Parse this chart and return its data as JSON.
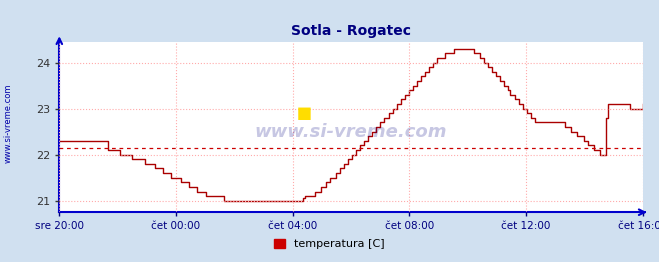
{
  "title": "Sotla - Rogatec",
  "title_color": "#000080",
  "background_color": "#d0e0f0",
  "plot_bg_color": "#ffffff",
  "line_color": "#aa0000",
  "dashed_line_value": 22.15,
  "dashed_line_color": "#cc0000",
  "axis_color": "#0000cc",
  "grid_color": "#ffaaaa",
  "yticks": [
    21,
    22,
    23,
    24
  ],
  "ylim": [
    20.75,
    24.45
  ],
  "xtick_labels": [
    "sre 20:00",
    "čet 00:00",
    "čet 04:00",
    "čet 08:00",
    "čet 12:00",
    "čet 16:00"
  ],
  "xlabel_color": "#000080",
  "ylabel_text": "www.si-vreme.com",
  "ylabel_color": "#0000aa",
  "legend_label": "temperatura [C]",
  "legend_color": "#cc0000",
  "watermark_text": "www.si-vreme.com",
  "watermark_color": "#000080",
  "temperature_data": [
    22.3,
    22.3,
    22.3,
    22.3,
    22.3,
    22.3,
    22.3,
    22.3,
    22.3,
    22.3,
    22.3,
    22.3,
    22.3,
    22.3,
    22.3,
    22.3,
    22.3,
    22.3,
    22.3,
    22.3,
    22.3,
    22.3,
    22.3,
    22.3,
    22.1,
    22.1,
    22.1,
    22.1,
    22.1,
    22.1,
    22.0,
    22.0,
    22.0,
    22.0,
    22.0,
    22.0,
    21.9,
    21.9,
    21.9,
    21.9,
    21.9,
    21.9,
    21.8,
    21.8,
    21.8,
    21.8,
    21.8,
    21.7,
    21.7,
    21.7,
    21.7,
    21.6,
    21.6,
    21.6,
    21.6,
    21.5,
    21.5,
    21.5,
    21.5,
    21.5,
    21.4,
    21.4,
    21.4,
    21.4,
    21.3,
    21.3,
    21.3,
    21.3,
    21.2,
    21.2,
    21.2,
    21.2,
    21.1,
    21.1,
    21.1,
    21.1,
    21.1,
    21.1,
    21.1,
    21.1,
    21.1,
    21.0,
    21.0,
    21.0,
    21.0,
    21.0,
    21.0,
    21.0,
    21.0,
    21.0,
    21.0,
    21.0,
    21.0,
    21.0,
    21.0,
    21.0,
    21.0,
    21.0,
    21.0,
    21.0,
    21.0,
    21.0,
    21.0,
    21.0,
    21.0,
    21.0,
    21.0,
    21.0,
    21.0,
    21.0,
    21.0,
    21.0,
    21.0,
    21.0,
    21.0,
    21.0,
    21.0,
    21.0,
    21.0,
    21.0,
    21.05,
    21.1,
    21.1,
    21.1,
    21.1,
    21.1,
    21.2,
    21.2,
    21.2,
    21.3,
    21.3,
    21.4,
    21.4,
    21.5,
    21.5,
    21.5,
    21.6,
    21.6,
    21.7,
    21.7,
    21.8,
    21.8,
    21.9,
    21.9,
    22.0,
    22.0,
    22.1,
    22.1,
    22.2,
    22.2,
    22.3,
    22.3,
    22.4,
    22.4,
    22.5,
    22.5,
    22.6,
    22.6,
    22.7,
    22.7,
    22.8,
    22.8,
    22.9,
    22.9,
    23.0,
    23.0,
    23.1,
    23.1,
    23.2,
    23.2,
    23.3,
    23.3,
    23.4,
    23.4,
    23.5,
    23.5,
    23.6,
    23.6,
    23.7,
    23.7,
    23.8,
    23.8,
    23.9,
    23.9,
    24.0,
    24.0,
    24.1,
    24.1,
    24.1,
    24.1,
    24.2,
    24.2,
    24.2,
    24.2,
    24.3,
    24.3,
    24.3,
    24.3,
    24.3,
    24.3,
    24.3,
    24.3,
    24.3,
    24.3,
    24.2,
    24.2,
    24.2,
    24.1,
    24.1,
    24.0,
    24.0,
    23.9,
    23.9,
    23.8,
    23.8,
    23.7,
    23.7,
    23.6,
    23.6,
    23.5,
    23.5,
    23.4,
    23.3,
    23.3,
    23.2,
    23.2,
    23.1,
    23.1,
    23.0,
    23.0,
    22.9,
    22.9,
    22.8,
    22.8,
    22.7,
    22.7,
    22.7,
    22.7,
    22.7,
    22.7,
    22.7,
    22.7,
    22.7,
    22.7,
    22.7,
    22.7,
    22.7,
    22.7,
    22.7,
    22.6,
    22.6,
    22.6,
    22.5,
    22.5,
    22.5,
    22.4,
    22.4,
    22.4,
    22.3,
    22.3,
    22.2,
    22.2,
    22.2,
    22.1,
    22.1,
    22.1,
    22.0,
    22.0,
    22.0,
    22.8,
    23.1,
    23.1,
    23.1,
    23.1,
    23.1,
    23.1,
    23.1,
    23.1,
    23.1,
    23.1,
    23.1,
    23.0,
    23.0,
    23.0,
    23.0,
    23.0,
    23.0,
    23.1
  ]
}
